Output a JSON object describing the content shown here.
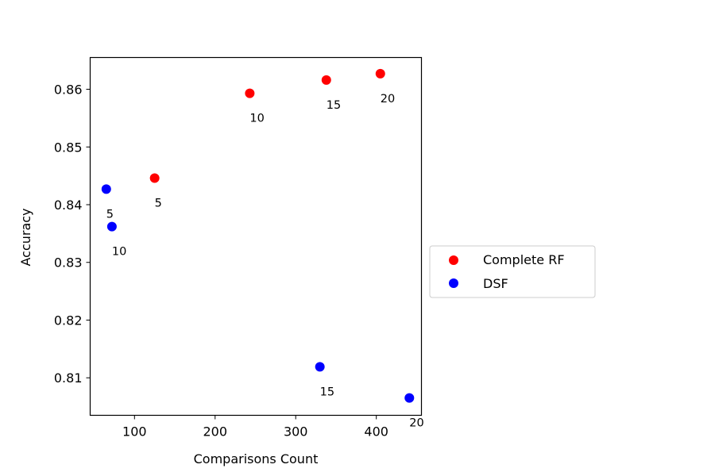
{
  "chart_data": {
    "type": "scatter",
    "xlabel": "Comparisons Count",
    "ylabel": "Accuracy",
    "xlim": [
      45,
      456
    ],
    "ylim": [
      0.8035,
      0.8655
    ],
    "xticks": [
      100,
      200,
      300,
      400
    ],
    "xtick_labels": [
      "100",
      "200",
      "300",
      "400"
    ],
    "yticks": [
      0.81,
      0.82,
      0.83,
      0.84,
      0.85,
      0.86
    ],
    "ytick_labels": [
      "0.81",
      "0.82",
      "0.83",
      "0.84",
      "0.85",
      "0.86"
    ],
    "legend_position": "outside-right",
    "series": [
      {
        "name": "Complete RF",
        "color": "#ff0000",
        "points": [
          {
            "x": 125,
            "y": 0.8446,
            "label": "5"
          },
          {
            "x": 243,
            "y": 0.8593,
            "label": "10"
          },
          {
            "x": 338,
            "y": 0.8616,
            "label": "15"
          },
          {
            "x": 405,
            "y": 0.8627,
            "label": "20"
          }
        ]
      },
      {
        "name": "DSF",
        "color": "#0000ff",
        "points": [
          {
            "x": 65,
            "y": 0.8427,
            "label": "5"
          },
          {
            "x": 72,
            "y": 0.8362,
            "label": "10"
          },
          {
            "x": 330,
            "y": 0.8119,
            "label": "15"
          },
          {
            "x": 441,
            "y": 0.8065,
            "label": "20"
          }
        ]
      }
    ]
  }
}
